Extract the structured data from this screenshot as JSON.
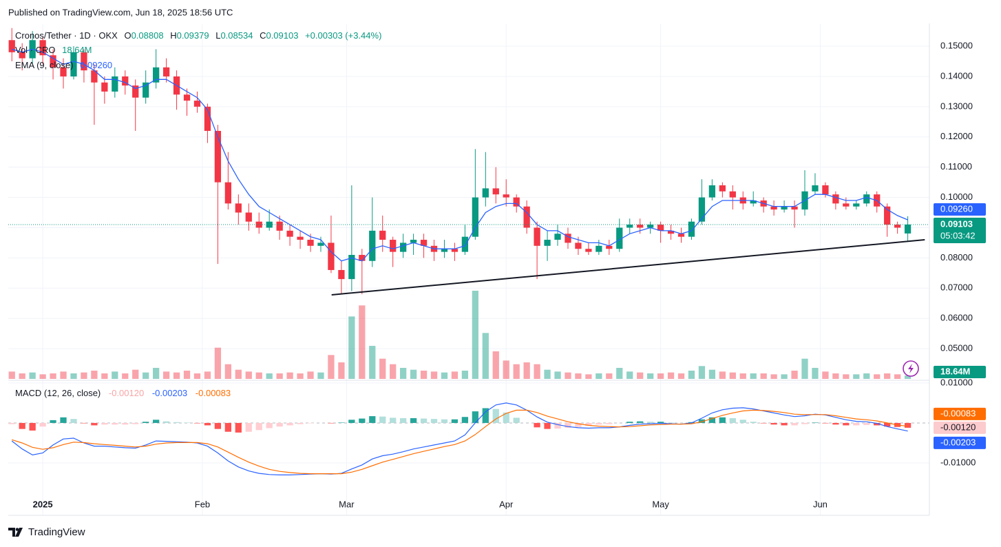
{
  "header": {
    "published": "Published on TradingView.com, Jun 18, 2025 18:56 UTC"
  },
  "footer": {
    "brand": "TradingView"
  },
  "chart_data": {
    "type": "candlestick",
    "title": "Cronos/Tether · 1D · OKX",
    "ohlc_keys": [
      "O",
      "H",
      "L",
      "C"
    ],
    "change": "+0.00303 (+3.44%)",
    "countdown": "05:03:42",
    "up_color": "#089981",
    "down_color": "#f23645",
    "x": [
      -6,
      -4,
      -2,
      0,
      2,
      4,
      6,
      8,
      10,
      12,
      14,
      16,
      18,
      20,
      22,
      24,
      26,
      28,
      30,
      32,
      34,
      36,
      38,
      40,
      42,
      44,
      46,
      48,
      50,
      52,
      54,
      56,
      58,
      60,
      62,
      64,
      66,
      68,
      70,
      72,
      74,
      76,
      78,
      80,
      82,
      84,
      86,
      88,
      90,
      92,
      94,
      96,
      98,
      100,
      102,
      104,
      106,
      108,
      110,
      112,
      114,
      116,
      118,
      120,
      122,
      124,
      126,
      128,
      130,
      132,
      134,
      136,
      138,
      140,
      142,
      144,
      146,
      148,
      150,
      152,
      154,
      156,
      158,
      160,
      162,
      164,
      166,
      168
    ],
    "xlim": [
      -6.7,
      172.2
    ],
    "xticks": [
      {
        "value": 0,
        "label": "2025"
      },
      {
        "value": 31,
        "label": "Feb"
      },
      {
        "value": 59,
        "label": "Mar"
      },
      {
        "value": 90,
        "label": "Apr"
      },
      {
        "value": 120,
        "label": "May"
      },
      {
        "value": 151,
        "label": "Jun"
      }
    ],
    "ylim": [
      0.04,
      0.1573
    ],
    "yticks": [
      {
        "value": 0.15,
        "label": "0.15000"
      },
      {
        "value": 0.14,
        "label": "0.14000"
      },
      {
        "value": 0.13,
        "label": "0.13000"
      },
      {
        "value": 0.12,
        "label": "0.12000"
      },
      {
        "value": 0.11,
        "label": "0.11000"
      },
      {
        "value": 0.1,
        "label": "0.10000"
      },
      {
        "value": 0.09,
        "label": "0.09000"
      },
      {
        "value": 0.08,
        "label": "0.08000"
      },
      {
        "value": 0.07,
        "label": "0.07000"
      },
      {
        "value": 0.06,
        "label": "0.06000"
      },
      {
        "value": 0.05,
        "label": "0.05000"
      }
    ],
    "grid": true,
    "ohlc": [
      [
        0.152,
        0.156,
        0.145,
        0.148
      ],
      [
        0.148,
        0.151,
        0.142,
        0.146
      ],
      [
        0.146,
        0.155,
        0.144,
        0.152
      ],
      [
        0.152,
        0.153,
        0.144,
        0.147
      ],
      [
        0.147,
        0.149,
        0.139,
        0.143
      ],
      [
        0.143,
        0.146,
        0.136,
        0.14
      ],
      [
        0.14,
        0.15,
        0.139,
        0.148
      ],
      [
        0.148,
        0.149,
        0.138,
        0.142
      ],
      [
        0.142,
        0.144,
        0.124,
        0.138
      ],
      [
        0.138,
        0.14,
        0.131,
        0.135
      ],
      [
        0.135,
        0.143,
        0.133,
        0.14
      ],
      [
        0.14,
        0.142,
        0.134,
        0.137
      ],
      [
        0.137,
        0.139,
        0.122,
        0.133
      ],
      [
        0.133,
        0.142,
        0.131,
        0.138
      ],
      [
        0.138,
        0.149,
        0.136,
        0.143
      ],
      [
        0.143,
        0.146,
        0.138,
        0.14
      ],
      [
        0.14,
        0.142,
        0.129,
        0.134
      ],
      [
        0.134,
        0.136,
        0.127,
        0.132
      ],
      [
        0.132,
        0.135,
        0.128,
        0.13
      ],
      [
        0.13,
        0.131,
        0.118,
        0.122
      ],
      [
        0.122,
        0.124,
        0.078,
        0.105
      ],
      [
        0.105,
        0.115,
        0.096,
        0.098
      ],
      [
        0.098,
        0.101,
        0.091,
        0.095
      ],
      [
        0.095,
        0.098,
        0.089,
        0.092
      ],
      [
        0.092,
        0.095,
        0.088,
        0.09
      ],
      [
        0.09,
        0.096,
        0.089,
        0.092
      ],
      [
        0.092,
        0.094,
        0.086,
        0.089
      ],
      [
        0.089,
        0.091,
        0.084,
        0.087
      ],
      [
        0.087,
        0.089,
        0.083,
        0.086
      ],
      [
        0.086,
        0.088,
        0.082,
        0.084
      ],
      [
        0.084,
        0.087,
        0.082,
        0.085
      ],
      [
        0.085,
        0.094,
        0.075,
        0.076
      ],
      [
        0.076,
        0.079,
        0.068,
        0.073
      ],
      [
        0.073,
        0.104,
        0.069,
        0.081
      ],
      [
        0.081,
        0.083,
        0.068,
        0.079
      ],
      [
        0.079,
        0.1,
        0.077,
        0.089
      ],
      [
        0.089,
        0.094,
        0.082,
        0.086
      ],
      [
        0.086,
        0.087,
        0.077,
        0.082
      ],
      [
        0.082,
        0.088,
        0.08,
        0.085
      ],
      [
        0.085,
        0.088,
        0.081,
        0.086
      ],
      [
        0.086,
        0.088,
        0.08,
        0.084
      ],
      [
        0.084,
        0.086,
        0.079,
        0.082
      ],
      [
        0.082,
        0.086,
        0.08,
        0.083
      ],
      [
        0.083,
        0.085,
        0.079,
        0.082
      ],
      [
        0.082,
        0.091,
        0.081,
        0.087
      ],
      [
        0.087,
        0.116,
        0.086,
        0.1
      ],
      [
        0.1,
        0.115,
        0.097,
        0.103
      ],
      [
        0.103,
        0.11,
        0.098,
        0.101
      ],
      [
        0.101,
        0.106,
        0.097,
        0.1
      ],
      [
        0.1,
        0.101,
        0.095,
        0.097
      ],
      [
        0.097,
        0.099,
        0.088,
        0.09
      ],
      [
        0.09,
        0.092,
        0.073,
        0.084
      ],
      [
        0.084,
        0.089,
        0.079,
        0.086
      ],
      [
        0.086,
        0.091,
        0.084,
        0.088
      ],
      [
        0.088,
        0.09,
        0.083,
        0.085
      ],
      [
        0.085,
        0.087,
        0.081,
        0.083
      ],
      [
        0.083,
        0.085,
        0.081,
        0.082
      ],
      [
        0.082,
        0.086,
        0.081,
        0.084
      ],
      [
        0.084,
        0.086,
        0.081,
        0.083
      ],
      [
        0.083,
        0.093,
        0.082,
        0.09
      ],
      [
        0.09,
        0.093,
        0.088,
        0.091
      ],
      [
        0.091,
        0.093,
        0.088,
        0.09
      ],
      [
        0.09,
        0.092,
        0.088,
        0.091
      ],
      [
        0.091,
        0.092,
        0.085,
        0.089
      ],
      [
        0.089,
        0.091,
        0.086,
        0.088
      ],
      [
        0.088,
        0.09,
        0.085,
        0.087
      ],
      [
        0.087,
        0.093,
        0.086,
        0.092
      ],
      [
        0.092,
        0.106,
        0.091,
        0.1
      ],
      [
        0.1,
        0.106,
        0.099,
        0.104
      ],
      [
        0.104,
        0.105,
        0.1,
        0.102
      ],
      [
        0.102,
        0.104,
        0.096,
        0.1
      ],
      [
        0.1,
        0.102,
        0.096,
        0.098
      ],
      [
        0.098,
        0.102,
        0.097,
        0.099
      ],
      [
        0.099,
        0.1,
        0.095,
        0.097
      ],
      [
        0.097,
        0.099,
        0.094,
        0.096
      ],
      [
        0.096,
        0.099,
        0.095,
        0.097
      ],
      [
        0.097,
        0.099,
        0.09,
        0.096
      ],
      [
        0.096,
        0.109,
        0.094,
        0.102
      ],
      [
        0.102,
        0.108,
        0.101,
        0.104
      ],
      [
        0.104,
        0.105,
        0.1,
        0.101
      ],
      [
        0.101,
        0.102,
        0.096,
        0.098
      ],
      [
        0.098,
        0.1,
        0.096,
        0.097
      ],
      [
        0.097,
        0.099,
        0.096,
        0.098
      ],
      [
        0.098,
        0.102,
        0.097,
        0.101
      ],
      [
        0.101,
        0.102,
        0.095,
        0.097
      ],
      [
        0.097,
        0.098,
        0.087,
        0.091
      ],
      [
        0.091,
        0.092,
        0.088,
        0.09
      ],
      [
        0.08808,
        0.09379,
        0.08534,
        0.09103
      ]
    ],
    "volume": {
      "name": "Vol · CRO",
      "ylim": [
        0,
        600
      ],
      "value_label": "18.64M",
      "values": [
        40,
        30,
        35,
        25,
        30,
        40,
        30,
        35,
        45,
        30,
        40,
        30,
        50,
        35,
        60,
        40,
        35,
        45,
        30,
        40,
        170,
        80,
        50,
        40,
        35,
        30,
        30,
        35,
        30,
        40,
        35,
        130,
        90,
        340,
        400,
        180,
        110,
        80,
        60,
        50,
        45,
        40,
        35,
        40,
        45,
        480,
        250,
        150,
        100,
        80,
        90,
        80,
        50,
        40,
        35,
        30,
        25,
        30,
        30,
        60,
        40,
        35,
        30,
        30,
        35,
        30,
        45,
        70,
        50,
        40,
        35,
        30,
        30,
        30,
        25,
        25,
        45,
        110,
        60,
        40,
        30,
        25,
        25,
        30,
        25,
        30,
        25,
        18.64
      ]
    },
    "ema": {
      "name": "EMA (9, close)",
      "color": "#2962ff",
      "value_label": "0.09260",
      "values": [
        0.149,
        0.148,
        0.149,
        0.148,
        0.146,
        0.144,
        0.145,
        0.144,
        0.142,
        0.139,
        0.139,
        0.138,
        0.136,
        0.137,
        0.139,
        0.139,
        0.137,
        0.135,
        0.133,
        0.129,
        0.12,
        0.112,
        0.106,
        0.101,
        0.097,
        0.095,
        0.093,
        0.091,
        0.089,
        0.087,
        0.086,
        0.082,
        0.079,
        0.08,
        0.079,
        0.083,
        0.084,
        0.083,
        0.084,
        0.085,
        0.084,
        0.083,
        0.083,
        0.083,
        0.084,
        0.09,
        0.095,
        0.097,
        0.098,
        0.098,
        0.095,
        0.091,
        0.089,
        0.089,
        0.087,
        0.086,
        0.085,
        0.085,
        0.084,
        0.086,
        0.088,
        0.089,
        0.09,
        0.089,
        0.089,
        0.088,
        0.089,
        0.093,
        0.097,
        0.099,
        0.099,
        0.099,
        0.099,
        0.098,
        0.097,
        0.097,
        0.097,
        0.099,
        0.101,
        0.101,
        0.1,
        0.099,
        0.099,
        0.1,
        0.099,
        0.096,
        0.094,
        0.0926
      ]
    },
    "trendline": {
      "color": "#131722",
      "x": [
        56.1,
        171.3
      ],
      "y": [
        0.0678,
        0.086
      ]
    },
    "macd": {
      "name": "MACD (12, 26, close)",
      "ylim": [
        -0.0231,
        0.0105
      ],
      "yticks": [
        {
          "value": 0.01,
          "label": "0.01000"
        },
        {
          "value": -0.01,
          "label": "-0.01000"
        }
      ],
      "histogram": {
        "colors": [
          "#26a69a",
          "#b2dfdb",
          "#ff5252",
          "#ffcdd2"
        ],
        "value_label": "-0.00120",
        "values": [
          -0.0003,
          -0.0015,
          -0.0019,
          -0.0009,
          0.0007,
          0.0014,
          0.001,
          -0.0001,
          -0.0006,
          -0.0004,
          -0.0004,
          -0.0004,
          -0.0003,
          0.0003,
          0.0008,
          0.0004,
          0.0002,
          0.0001,
          -0.0001,
          -0.0006,
          -0.0015,
          -0.0022,
          -0.0024,
          -0.0022,
          -0.0018,
          -0.0013,
          -0.0009,
          -0.0006,
          -0.0003,
          -0.0001,
          0,
          -0.0001,
          0.0001,
          0.0008,
          0.0011,
          0.0017,
          0.0016,
          0.0013,
          0.0012,
          0.0012,
          0.0011,
          0.001,
          0.0009,
          0.0009,
          0.0015,
          0.0029,
          0.0037,
          0.0035,
          0.0026,
          0.0013,
          0,
          -0.0011,
          -0.0015,
          -0.0014,
          -0.0012,
          -0.001,
          -0.0007,
          -0.0004,
          -0.0003,
          0,
          0.0003,
          0.0004,
          0.0003,
          0.0003,
          0.0001,
          0,
          0.0002,
          0.0009,
          0.0014,
          0.0014,
          0.0012,
          0.0008,
          0.0003,
          -0.0001,
          -0.0004,
          -0.0006,
          -0.0006,
          -0.0003,
          0.0001,
          -0.0001,
          -0.0004,
          -0.0006,
          -0.0006,
          -0.0005,
          -0.0006,
          -0.0009,
          -0.001,
          -0.0012
        ]
      },
      "macd_line": {
        "color": "#2962ff",
        "value_label": "-0.00203",
        "values": [
          -0.0045,
          -0.0065,
          -0.008,
          -0.0075,
          -0.0055,
          -0.004,
          -0.0038,
          -0.005,
          -0.0058,
          -0.0058,
          -0.006,
          -0.0062,
          -0.0063,
          -0.0055,
          -0.0045,
          -0.0046,
          -0.0047,
          -0.0048,
          -0.005,
          -0.0058,
          -0.0075,
          -0.0095,
          -0.011,
          -0.012,
          -0.0126,
          -0.0129,
          -0.013,
          -0.013,
          -0.0129,
          -0.0128,
          -0.0127,
          -0.0128,
          -0.0126,
          -0.0115,
          -0.0105,
          -0.009,
          -0.0082,
          -0.0078,
          -0.0072,
          -0.0065,
          -0.006,
          -0.0055,
          -0.005,
          -0.0045,
          -0.003,
          0,
          0.0028,
          0.0045,
          0.005,
          0.0045,
          0.0032,
          0.0015,
          0.0002,
          -0.0004,
          -0.0009,
          -0.0012,
          -0.0013,
          -0.0012,
          -0.0012,
          -0.001,
          -0.0006,
          -0.0003,
          -0.0002,
          -0.0001,
          -0.0002,
          -0.0003,
          0,
          0.0012,
          0.0025,
          0.0033,
          0.0037,
          0.0038,
          0.0035,
          0.003,
          0.0025,
          0.002,
          0.0016,
          0.0018,
          0.0022,
          0.002,
          0.0014,
          0.0008,
          0.0004,
          0.0003,
          -0.0001,
          -0.0009,
          -0.0015,
          -0.00203
        ]
      },
      "signal": {
        "color": "#ff6d00",
        "value_label": "-0.00083",
        "values": [
          -0.0042,
          -0.005,
          -0.0061,
          -0.0066,
          -0.0062,
          -0.0054,
          -0.0048,
          -0.0049,
          -0.0052,
          -0.0054,
          -0.0056,
          -0.0058,
          -0.006,
          -0.0058,
          -0.0053,
          -0.005,
          -0.0049,
          -0.0049,
          -0.0049,
          -0.0052,
          -0.006,
          -0.0073,
          -0.0086,
          -0.0098,
          -0.0108,
          -0.0116,
          -0.0121,
          -0.0124,
          -0.0126,
          -0.0127,
          -0.0127,
          -0.0127,
          -0.0127,
          -0.0123,
          -0.0116,
          -0.0107,
          -0.0098,
          -0.0091,
          -0.0084,
          -0.0077,
          -0.0071,
          -0.0065,
          -0.0059,
          -0.0054,
          -0.0045,
          -0.0029,
          -0.0009,
          0.001,
          0.0024,
          0.0032,
          0.0032,
          0.0026,
          0.0017,
          0.001,
          0.0003,
          -0.0002,
          -0.0006,
          -0.0008,
          -0.0009,
          -0.001,
          -0.0009,
          -0.0007,
          -0.0005,
          -0.0004,
          -0.0003,
          -0.0003,
          -0.0002,
          0.0003,
          0.0011,
          0.0019,
          0.0025,
          0.003,
          0.0032,
          0.0031,
          0.0029,
          0.0026,
          0.0022,
          0.0021,
          0.0021,
          0.0021,
          0.0018,
          0.0014,
          0.001,
          0.0008,
          0.0005,
          0,
          -0.0005,
          -0.00083
        ]
      }
    }
  }
}
